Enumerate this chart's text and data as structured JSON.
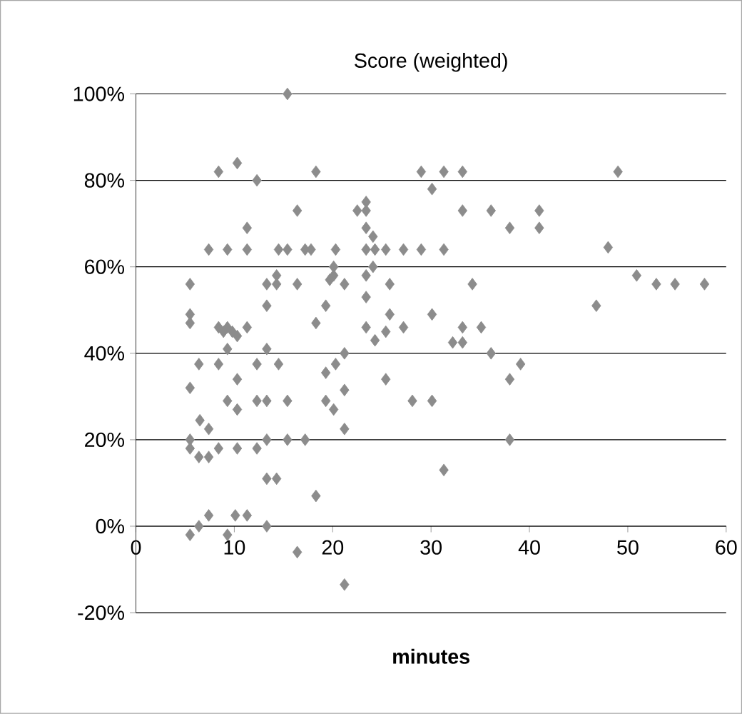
{
  "chart_data": {
    "type": "scatter",
    "title": "Score (weighted)",
    "xlabel": "**minutes**",
    "x": [
      15.4,
      8.4,
      10.3,
      12.3,
      18.3,
      16.4,
      11.3,
      7.4,
      9.3,
      11.3,
      14.5,
      15.4,
      17.2,
      14.3,
      13.3,
      14.3,
      16.4,
      5.5,
      5.5,
      5.5,
      8.4,
      8.9,
      9.3,
      10.3,
      11.3,
      9.8,
      13.3,
      18.3,
      9.3,
      13.3,
      6.4,
      8.4,
      12.3,
      14.5,
      10.3,
      5.5,
      9.3,
      12.3,
      13.3,
      15.4,
      10.3,
      6.5,
      7.4,
      5.5,
      5.5,
      6.4,
      7.4,
      8.4,
      10.3,
      12.3,
      13.3,
      15.4,
      17.2,
      13.3,
      14.3,
      18.3,
      5.5,
      6.4,
      7.4,
      9.3,
      10.1,
      11.3,
      13.3,
      16.4,
      29.0,
      31.3,
      33.2,
      30.1,
      22.5,
      23.4,
      23.4,
      33.2,
      36.1,
      38.0,
      23.4,
      24.1,
      17.8,
      20.3,
      23.4,
      24.3,
      25.4,
      27.2,
      29.0,
      31.3,
      20.1,
      20.1,
      19.7,
      21.2,
      23.4,
      24.1,
      25.8,
      34.2,
      23.4,
      19.3,
      23.4,
      25.8,
      27.2,
      30.1,
      25.4,
      24.3,
      33.2,
      35.1,
      32.2,
      33.2,
      36.1,
      21.2,
      20.3,
      19.3,
      21.2,
      25.4,
      39.1,
      38.0,
      19.3,
      28.1,
      30.1,
      20.1,
      21.2,
      38.0,
      31.3,
      21.2,
      49.0,
      41.0,
      41.0,
      48.0,
      50.9,
      52.9,
      54.8,
      57.8,
      46.8
    ],
    "values": [
      100,
      82,
      84,
      80,
      82,
      73,
      69,
      64,
      64,
      64,
      64,
      64,
      64,
      58,
      56,
      56,
      56,
      56,
      49,
      47,
      46,
      45,
      46,
      44,
      46,
      45,
      51,
      47,
      41,
      41,
      37.5,
      37.5,
      37.5,
      37.5,
      34,
      32,
      29,
      29,
      29,
      29,
      27,
      24.5,
      22.5,
      20,
      18,
      16,
      16,
      18,
      18,
      18,
      20,
      20,
      20,
      11,
      11,
      7,
      -2,
      0,
      2.5,
      -2,
      2.5,
      2.5,
      0,
      -6,
      82,
      82,
      82,
      78,
      73,
      75,
      73,
      73,
      73,
      69,
      69,
      67,
      64,
      64,
      64,
      64,
      64,
      64,
      64,
      64,
      60,
      58,
      57,
      56,
      58,
      60,
      56,
      56,
      53,
      51,
      46,
      49,
      46,
      49,
      45,
      43,
      46,
      46,
      42.5,
      42.5,
      40,
      40,
      37.5,
      35.5,
      31.5,
      34,
      37.5,
      34,
      29,
      29,
      29,
      27,
      22.5,
      20,
      13,
      -13.5,
      82,
      73,
      69,
      64.5,
      58,
      56,
      56,
      56,
      51
    ],
    "color": "#8c8c8c",
    "marker": "diamond",
    "grid": "y",
    "xlim": [
      0,
      60
    ],
    "xticks": [
      0,
      10,
      20,
      30,
      40,
      50,
      60
    ],
    "ylim": [
      -20,
      100
    ],
    "yticks": [
      {
        "value": -20,
        "label": "-20%"
      },
      {
        "value": 0,
        "label": "0%"
      },
      {
        "value": 20,
        "label": "20%"
      },
      {
        "value": 40,
        "label": "40%"
      },
      {
        "value": 60,
        "label": "60%"
      },
      {
        "value": 80,
        "label": "80%"
      },
      {
        "value": 100,
        "label": "100%"
      }
    ]
  }
}
